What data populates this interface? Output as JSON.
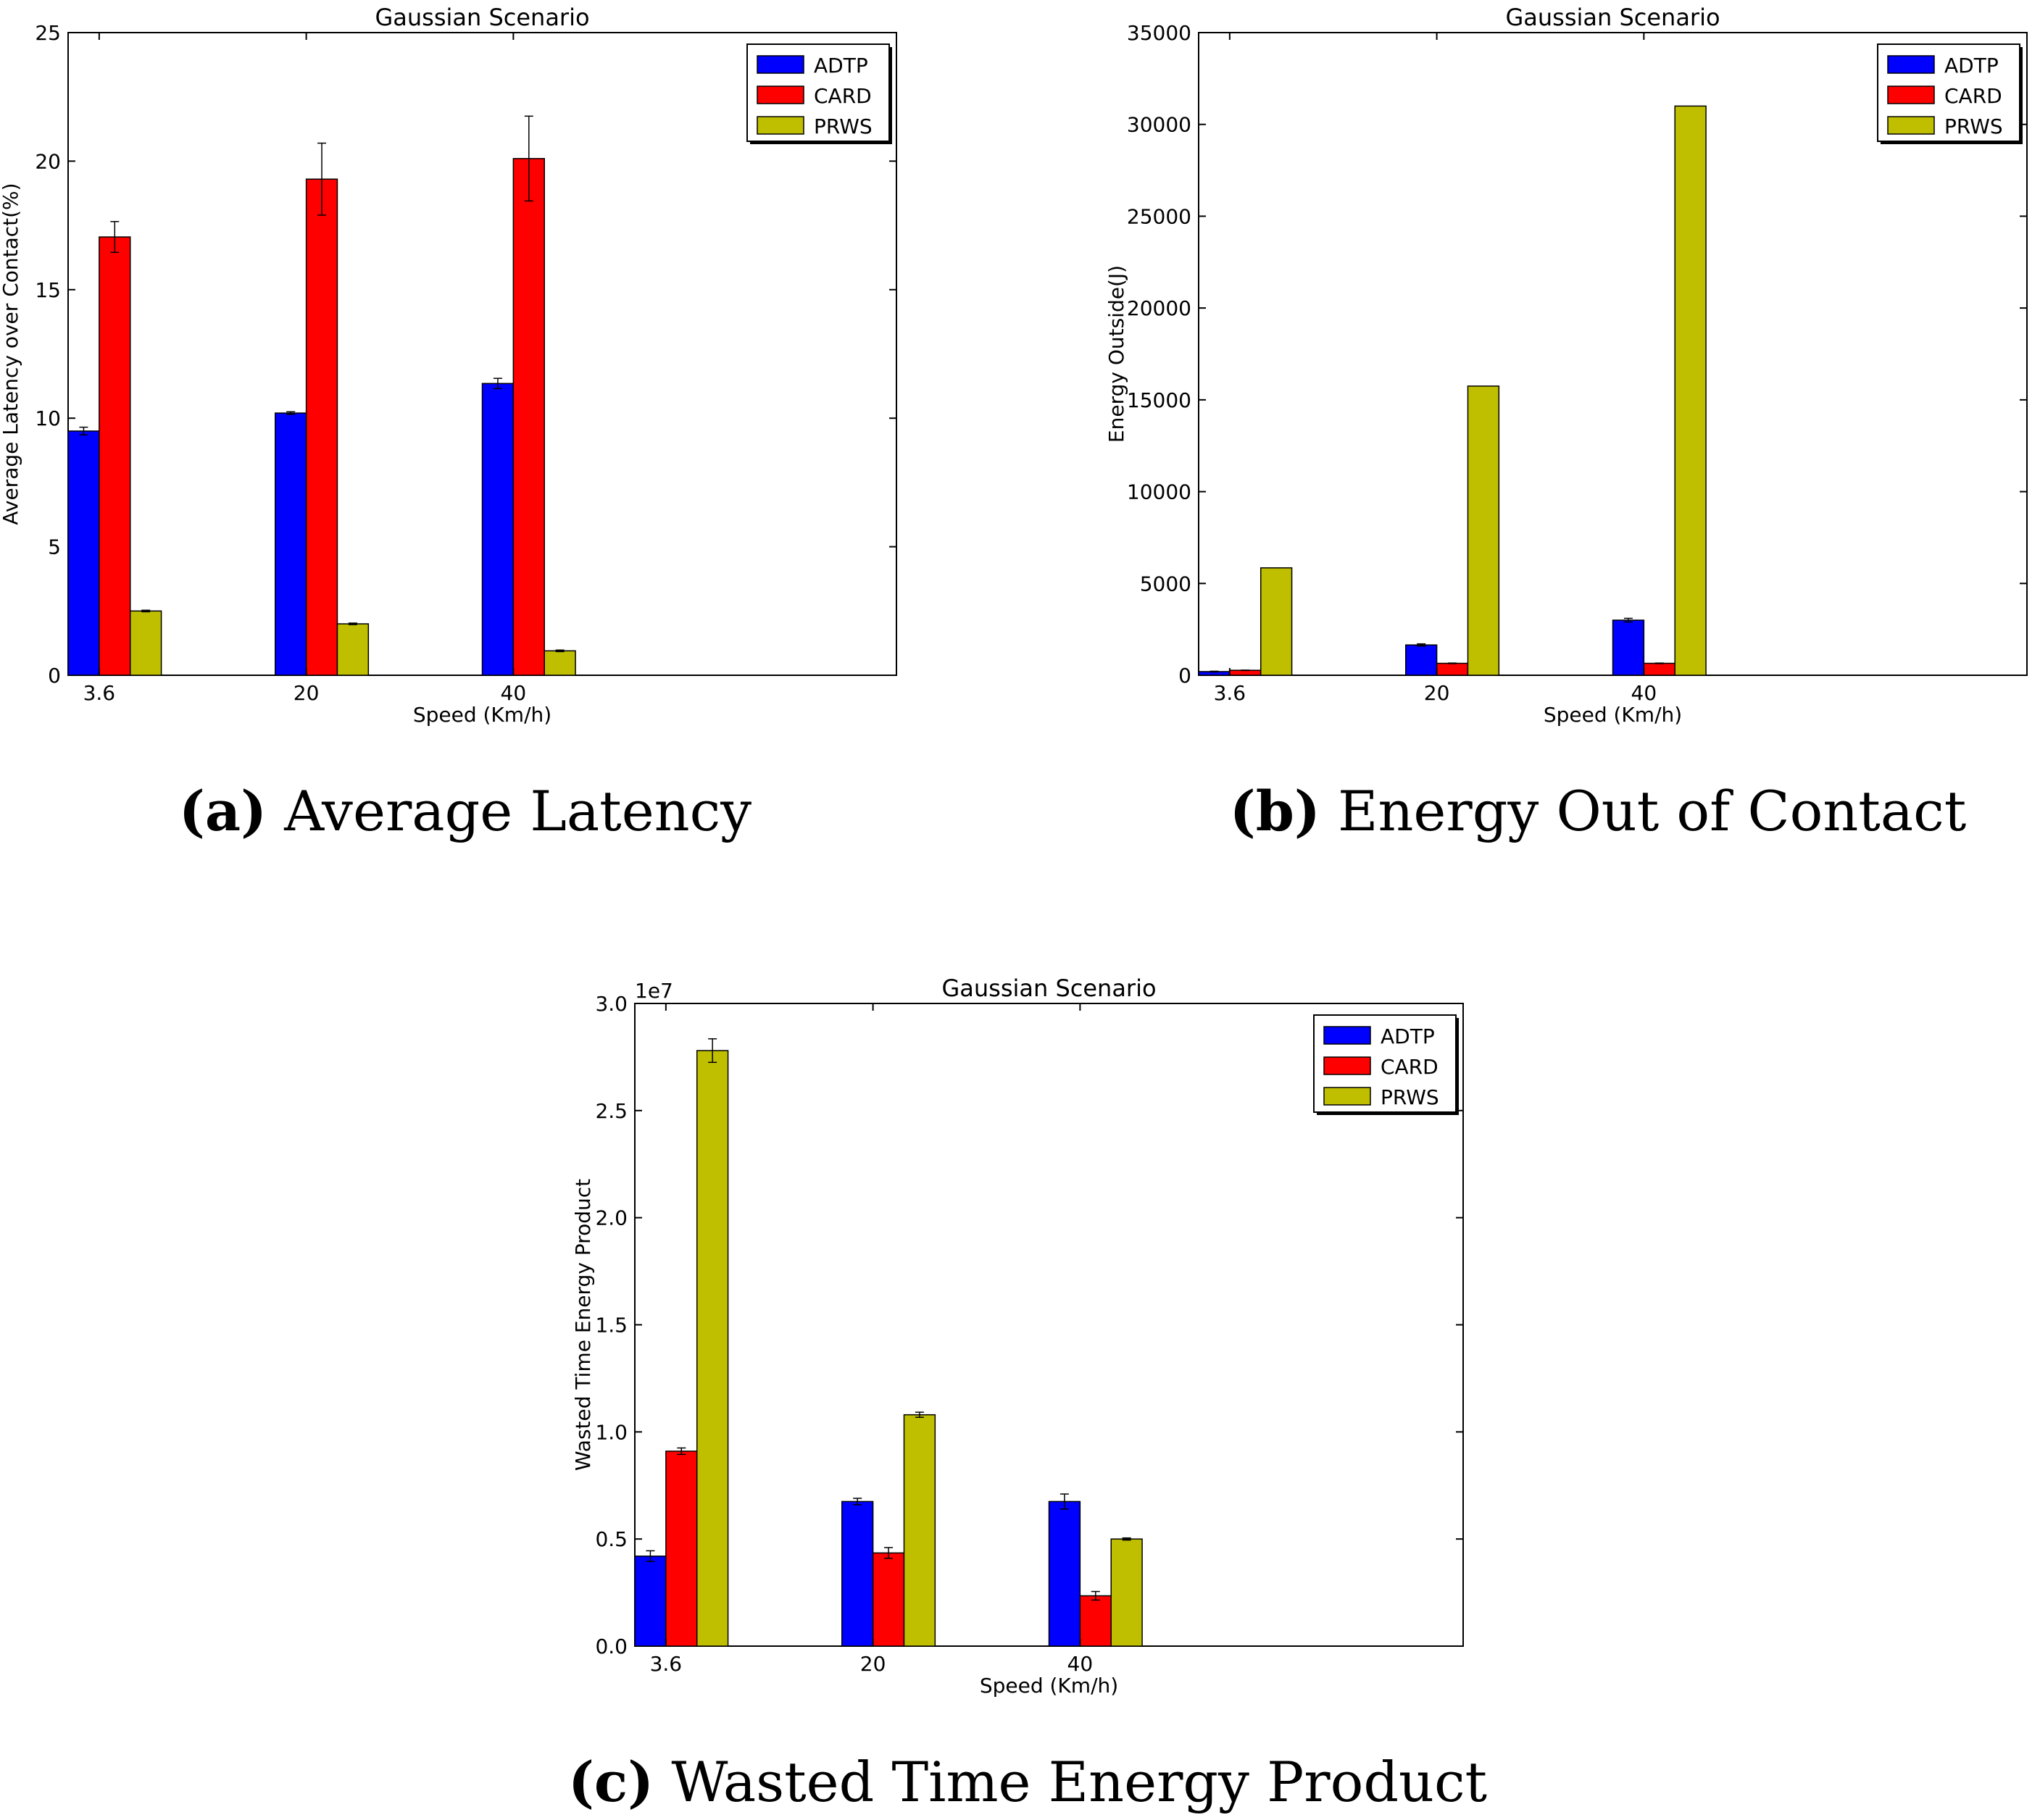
{
  "colors": {
    "ADTP": "#0000ff",
    "CARD": "#ff0000",
    "PRWS": "#bfbf00"
  },
  "chart_data": [
    {
      "type": "bar",
      "title": "Gaussian Scenario",
      "xlabel": "Speed (Km/h)",
      "ylabel": "Average Latency over Contact(%)",
      "categories": [
        "3.6",
        "20",
        "40"
      ],
      "ylim": [
        0,
        25
      ],
      "yticks": [
        "0",
        "5",
        "10",
        "15",
        "20",
        "25"
      ],
      "exponent_label": "",
      "series": [
        {
          "name": "ADTP",
          "values": [
            9.5,
            10.2,
            11.35
          ],
          "errors": [
            0.15,
            0.05,
            0.2
          ]
        },
        {
          "name": "CARD",
          "values": [
            17.05,
            19.3,
            20.1
          ],
          "errors": [
            0.6,
            1.4,
            1.65
          ]
        },
        {
          "name": "PRWS",
          "values": [
            2.5,
            2.0,
            0.95
          ],
          "errors": [
            0.03,
            0.03,
            0.03
          ]
        }
      ],
      "legend": "top-right"
    },
    {
      "type": "bar",
      "title": "Gaussian Scenario",
      "xlabel": "Speed (Km/h)",
      "ylabel": "Energy Outside(J)",
      "categories": [
        "3.6",
        "20",
        "40"
      ],
      "ylim": [
        0,
        35000
      ],
      "yticks": [
        "0",
        "5000",
        "10000",
        "15000",
        "20000",
        "25000",
        "30000",
        "35000"
      ],
      "exponent_label": "",
      "series": [
        {
          "name": "ADTP",
          "values": [
            200,
            1650,
            3000
          ],
          "errors": [
            20,
            60,
            100
          ]
        },
        {
          "name": "CARD",
          "values": [
            270,
            650,
            650
          ],
          "errors": [
            10,
            15,
            15
          ]
        },
        {
          "name": "PRWS",
          "values": [
            5850,
            15750,
            31000
          ],
          "errors": [
            0,
            0,
            0
          ]
        }
      ],
      "legend": "top-right"
    },
    {
      "type": "bar",
      "title": "Gaussian Scenario",
      "xlabel": "Speed (Km/h)",
      "ylabel": "Wasted Time Energy Product",
      "categories": [
        "3.6",
        "20",
        "40"
      ],
      "ylim": [
        0,
        30000000
      ],
      "yticks": [
        "0.0",
        "0.5",
        "1.0",
        "1.5",
        "2.0",
        "2.5",
        "3.0"
      ],
      "exponent_label": "1e7",
      "series": [
        {
          "name": "ADTP",
          "values": [
            4200000,
            6750000,
            6750000
          ],
          "errors": [
            250000,
            150000,
            350000
          ]
        },
        {
          "name": "CARD",
          "values": [
            9100000,
            4350000,
            2350000
          ],
          "errors": [
            150000,
            250000,
            200000
          ]
        },
        {
          "name": "PRWS",
          "values": [
            27800000,
            10800000,
            5000000
          ],
          "errors": [
            550000,
            120000,
            50000
          ]
        }
      ],
      "legend": "top-right"
    }
  ],
  "captions": [
    {
      "tag": "(a)",
      "text": "Average Latency"
    },
    {
      "tag": "(b)",
      "text": "Energy Out of Contact"
    },
    {
      "tag": "(c)",
      "text": "Wasted Time Energy Product"
    }
  ]
}
